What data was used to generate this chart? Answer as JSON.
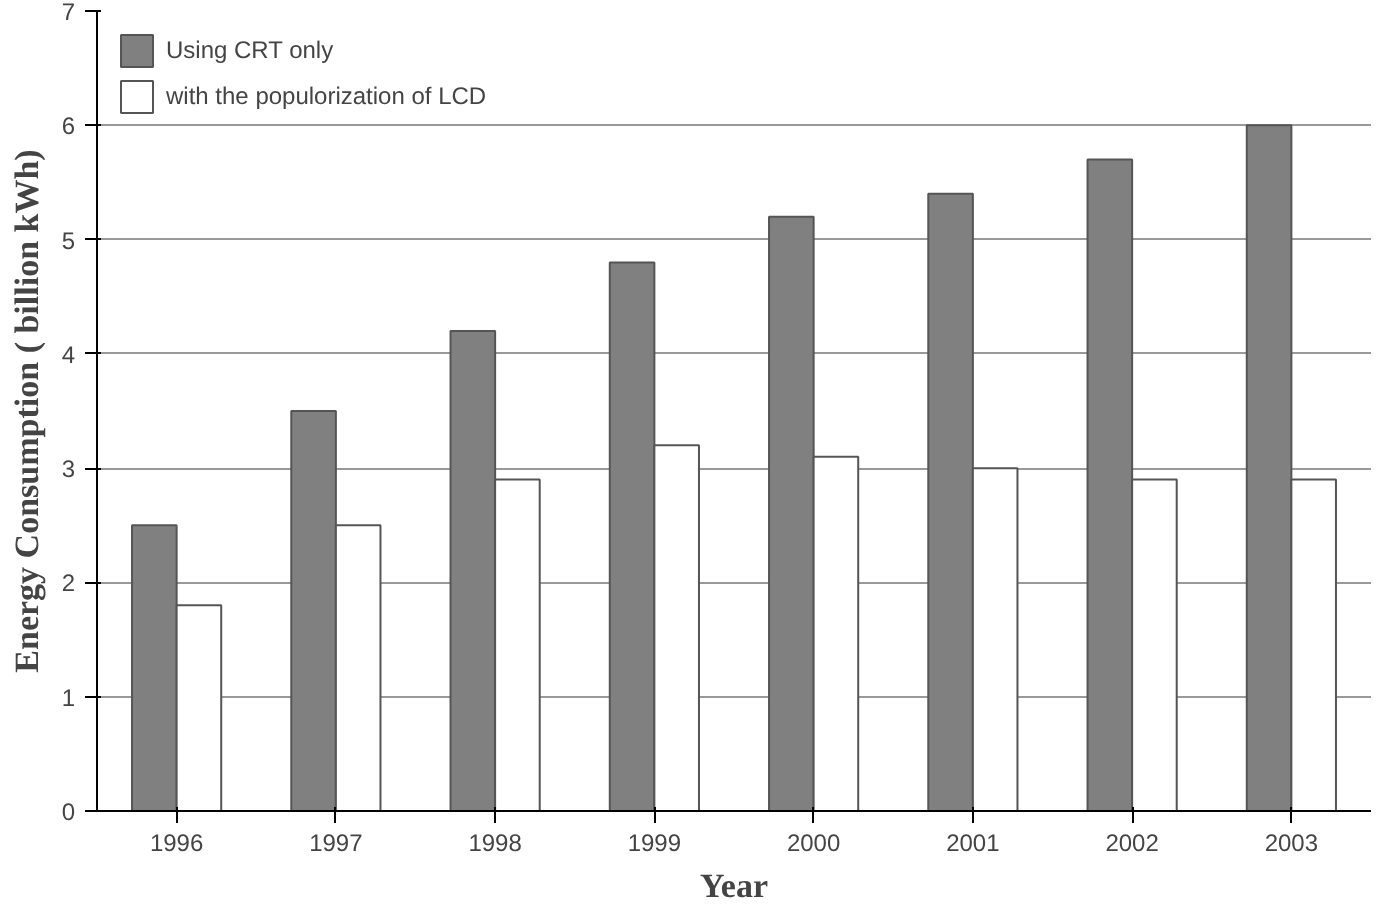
{
  "chart_data": {
    "type": "bar",
    "xlabel": "Year",
    "ylabel": "Energy Consumption ( billion kWh)",
    "categories": [
      "1996",
      "1997",
      "1998",
      "1999",
      "2000",
      "2001",
      "2002",
      "2003"
    ],
    "series": [
      {
        "name": "Using CRT only",
        "color": "#808080",
        "values": [
          2.5,
          3.5,
          4.2,
          4.8,
          5.2,
          5.4,
          5.7,
          6.0
        ]
      },
      {
        "name": "with the populorization of LCD",
        "color": "#ffffff",
        "values": [
          1.8,
          2.5,
          2.9,
          3.2,
          3.1,
          3.0,
          2.9,
          2.9
        ]
      }
    ],
    "ylim": [
      0,
      7
    ],
    "yticks": [
      0,
      1,
      2,
      3,
      4,
      5,
      6,
      7
    ],
    "grid": "y",
    "legend": "top left"
  }
}
